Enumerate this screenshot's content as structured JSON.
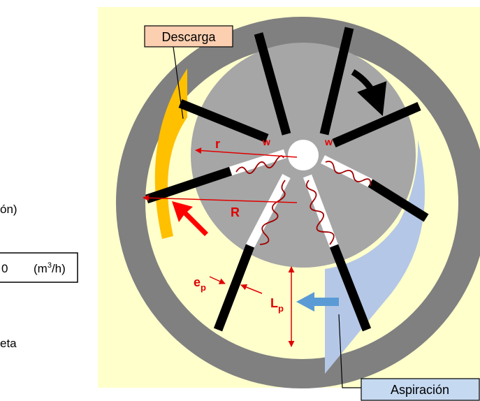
{
  "labels": {
    "discharge": "Descarga",
    "suction": "Aspiración",
    "r": "r",
    "R": "R",
    "w1": "w",
    "w2": "w",
    "ep_main": "e",
    "ep_sub": "p",
    "lp_main": "L",
    "lp_sub": "p"
  },
  "left_panel": {
    "text1": "ón)",
    "value": "0",
    "unit_open": "(m",
    "unit_sup": "3",
    "unit_close": "/h)",
    "text2": "eta"
  }
}
